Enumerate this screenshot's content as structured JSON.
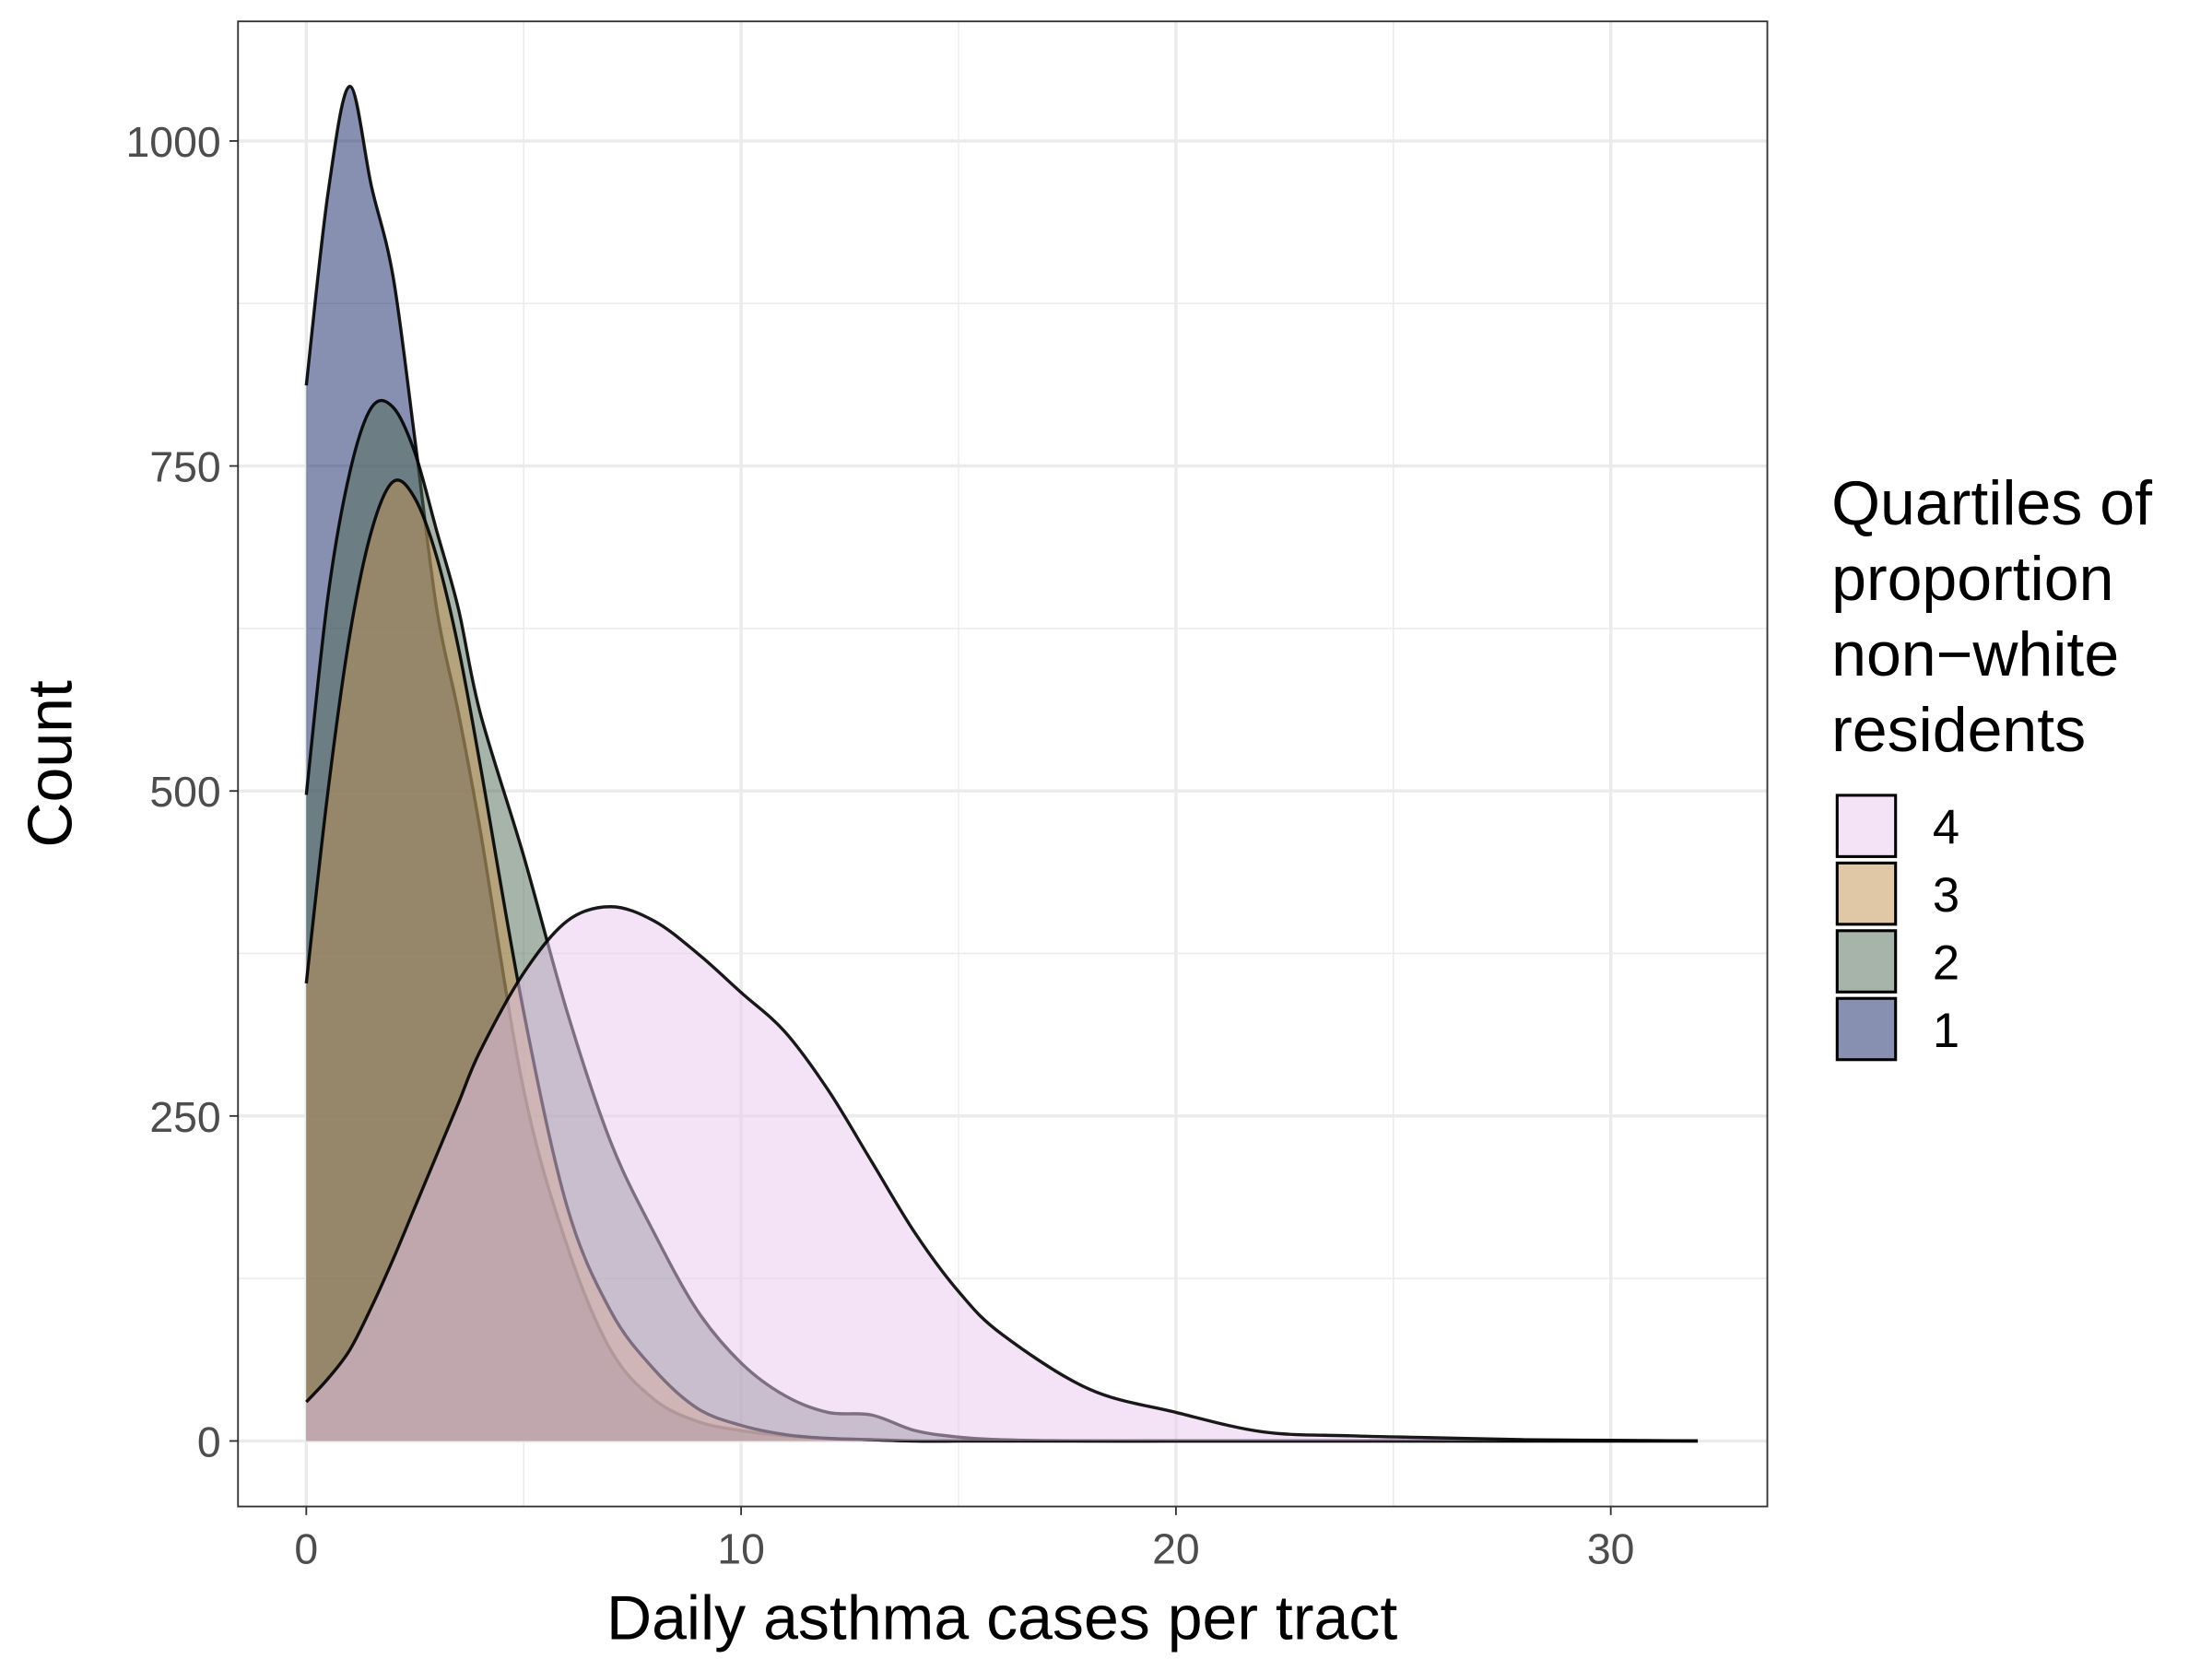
{
  "chart_data": {
    "type": "area",
    "x_label": "Daily asthma cases per tract",
    "y_label": "Count",
    "legend_title": [
      "Quartiles of",
      "proportion",
      "non−white",
      "residents"
    ],
    "legend_position": "right",
    "legend_reversed": true,
    "grid": true,
    "alpha": 0.5,
    "x": [
      0,
      0.5,
      1,
      1.5,
      2,
      2.5,
      3,
      3.5,
      4,
      5,
      6,
      7,
      8,
      9,
      10,
      11,
      12,
      13,
      14,
      15,
      16,
      18,
      20,
      22,
      24,
      26,
      28,
      30,
      32
    ],
    "series": [
      {
        "name": "1",
        "color": "#112266",
        "values": [
          812,
          960,
          1042,
          965,
          895,
          770,
          640,
          560,
          470,
          270,
          150,
          70,
          32,
          15,
          8,
          4,
          2,
          1,
          0,
          0,
          0,
          0,
          0,
          0,
          0,
          0,
          0,
          0,
          0
        ]
      },
      {
        "name": "2",
        "color": "#4f6a55",
        "values": [
          497,
          650,
          745,
          795,
          795,
          760,
          700,
          640,
          560,
          450,
          330,
          230,
          160,
          100,
          60,
          35,
          22,
          20,
          8,
          3,
          1,
          0,
          0,
          0,
          0,
          0,
          0,
          0,
          0
        ]
      },
      {
        "name": "3",
        "color": "#c2924f",
        "values": [
          352,
          500,
          620,
          700,
          738,
          725,
          680,
          610,
          520,
          330,
          180,
          100,
          55,
          25,
          12,
          5,
          2,
          1,
          0,
          0,
          0,
          0,
          0,
          0,
          0,
          0,
          0,
          0,
          0
        ]
      },
      {
        "name": "4",
        "color": "#eac8f0",
        "values": [
          30,
          48,
          70,
          103,
          140,
          180,
          220,
          260,
          300,
          360,
          400,
          411,
          400,
          375,
          345,
          315,
          270,
          215,
          160,
          115,
          82,
          40,
          22,
          7,
          4,
          2.5,
          1,
          0.5,
          0
        ]
      }
    ],
    "xlim": [
      -1.57,
      33.6
    ],
    "ylim": [
      -50.4,
      1092
    ],
    "xticks": [
      0,
      10,
      20,
      30
    ],
    "yticks": [
      0,
      250,
      500,
      750,
      1000
    ]
  }
}
